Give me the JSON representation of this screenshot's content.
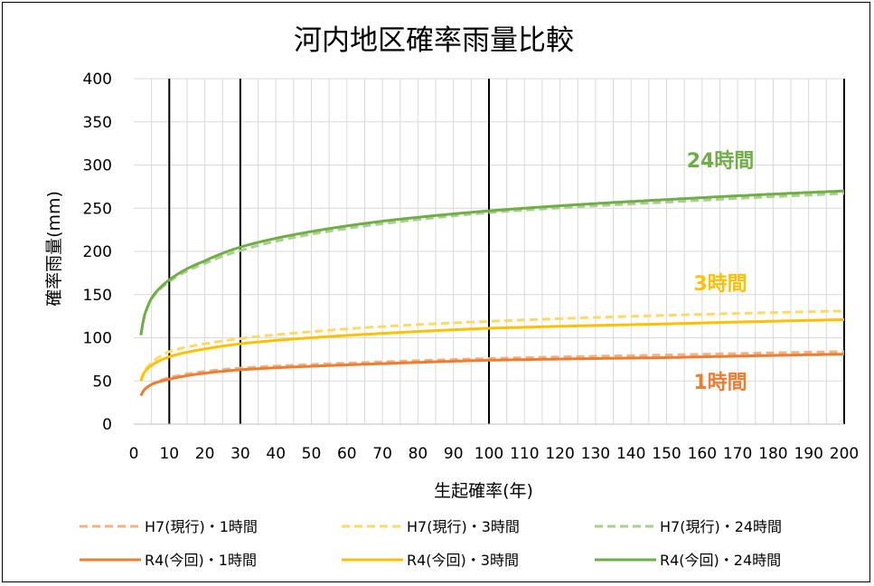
{
  "chart_data": {
    "type": "line",
    "title": "河内地区確率雨量比較",
    "xlabel": "生起確率(年)",
    "ylabel": "確率雨量(mm)",
    "xlim": [
      0,
      200
    ],
    "ylim": [
      0,
      400
    ],
    "xticks": [
      0,
      10,
      20,
      30,
      40,
      50,
      60,
      70,
      80,
      90,
      100,
      110,
      120,
      130,
      140,
      150,
      160,
      170,
      180,
      190,
      200
    ],
    "yticks": [
      0,
      50,
      100,
      150,
      200,
      250,
      300,
      350,
      400
    ],
    "grid": true,
    "reference_lines_x": [
      10,
      30,
      100,
      200
    ],
    "legend_position": "bottom",
    "x": [
      2,
      3,
      5,
      10,
      20,
      30,
      50,
      70,
      100,
      150,
      200
    ],
    "series": [
      {
        "name": "H7(現行)・1時間",
        "style": "dashed",
        "color": "#F4B183",
        "values": [
          33,
          40,
          46,
          54,
          61,
          65,
          69,
          72,
          76,
          80,
          84
        ]
      },
      {
        "name": "H7(現行)・3時間",
        "style": "dashed",
        "color": "#FFD966",
        "values": [
          50,
          62,
          71,
          84,
          93,
          99,
          107,
          113,
          119,
          126,
          131
        ]
      },
      {
        "name": "H7(現行)・24時間",
        "style": "dashed",
        "color": "#A9D18E",
        "values": [
          103,
          125,
          145,
          165,
          186,
          201,
          220,
          232,
          245,
          257,
          267
        ]
      },
      {
        "name": "R4(今回)・1時間",
        "style": "solid",
        "color": "#ED7D31",
        "values": [
          33,
          40,
          46,
          52,
          59,
          63,
          67,
          70,
          74,
          77,
          81
        ]
      },
      {
        "name": "R4(今回)・3時間",
        "style": "solid",
        "color": "#FFC000",
        "values": [
          50,
          60,
          68,
          78,
          87,
          93,
          100,
          105,
          111,
          116,
          121
        ]
      },
      {
        "name": "R4(今回)・24時間",
        "style": "solid",
        "color": "#70AD47",
        "values": [
          103,
          126,
          146,
          167,
          189,
          205,
          223,
          235,
          247,
          260,
          270
        ]
      }
    ],
    "annotations": [
      {
        "text": "24時間",
        "color": "#70AD47"
      },
      {
        "text": "3時間",
        "color": "#FFC000"
      },
      {
        "text": "1時間",
        "color": "#ED7D31"
      }
    ]
  }
}
